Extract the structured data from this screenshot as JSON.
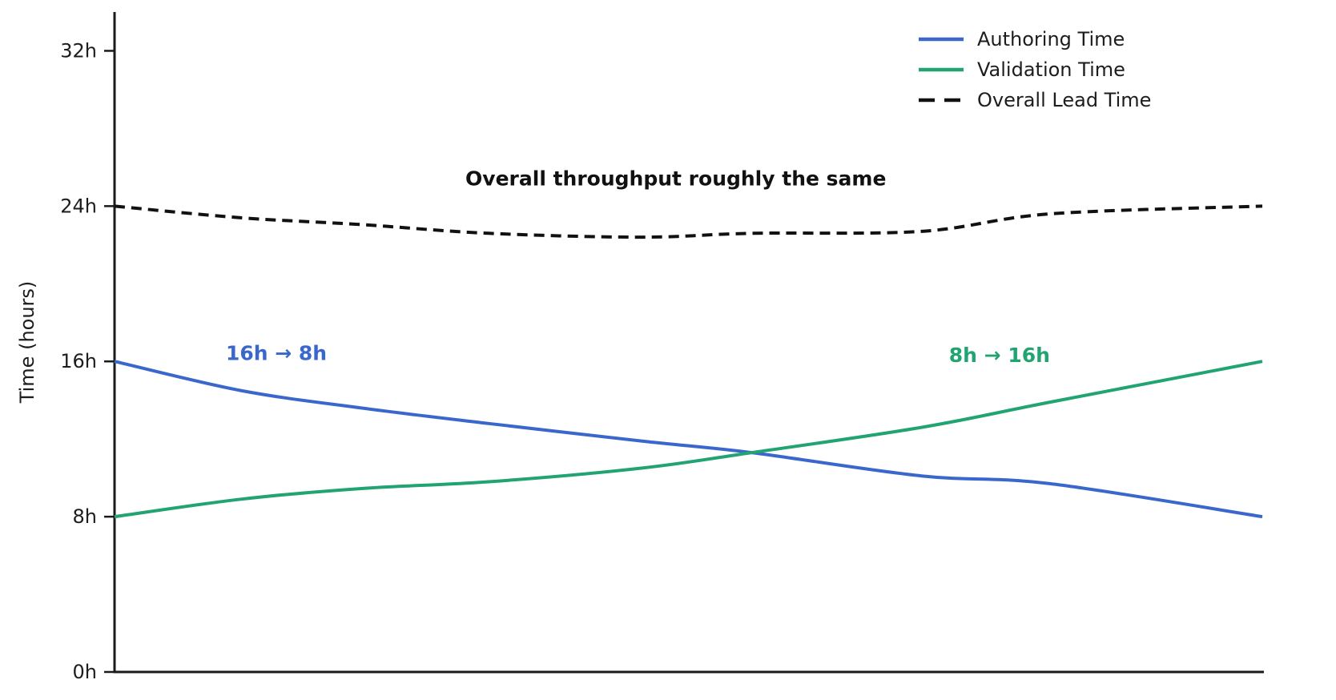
{
  "figure": {
    "background": "#ffffff",
    "axis_color": "#1a1a1a",
    "text_color": "#1d1d1d"
  },
  "chart_data": {
    "type": "line",
    "title": "",
    "xlabel": "",
    "ylabel": "Time (hours)",
    "xlim": [
      0,
      1
    ],
    "ylim": [
      0,
      34
    ],
    "x_tick_labels": [],
    "yticks": [
      {
        "value": 0,
        "label": "0h"
      },
      {
        "value": 8,
        "label": "8h"
      },
      {
        "value": 16,
        "label": "16h"
      },
      {
        "value": 24,
        "label": "24h"
      },
      {
        "value": 32,
        "label": "32h"
      }
    ],
    "grid": false,
    "legend_position": "top-right",
    "x": [
      0,
      0.11,
      0.215,
      0.326,
      0.459,
      0.555,
      0.703,
      0.815,
      1.0
    ],
    "series": [
      {
        "name": "Authoring Time",
        "color": "#3a67cb",
        "style": "solid",
        "values": [
          16.0,
          14.5,
          13.6,
          12.8,
          11.9,
          11.3,
          10.1,
          9.7,
          8.0
        ]
      },
      {
        "name": "Validation Time",
        "color": "#21a472",
        "style": "solid",
        "values": [
          8.0,
          8.9,
          9.45,
          9.8,
          10.5,
          11.3,
          12.6,
          13.9,
          16.0
        ]
      },
      {
        "name": "Overall Lead Time",
        "color": "#111111",
        "style": "dashed",
        "values": [
          24.0,
          23.4,
          23.05,
          22.6,
          22.4,
          22.6,
          22.7,
          23.6,
          24.0
        ]
      }
    ],
    "annotations": [
      {
        "text": "Overall throughput roughly the same",
        "color": "#111111",
        "x": 0.489,
        "y": 25.4,
        "bold": true
      },
      {
        "text": "16h → 8h",
        "color": "#3a67cb",
        "x": 0.141,
        "y": 16.4,
        "bold": true
      },
      {
        "text": "8h → 16h",
        "color": "#21a472",
        "x": 0.771,
        "y": 16.3,
        "bold": true
      }
    ]
  }
}
